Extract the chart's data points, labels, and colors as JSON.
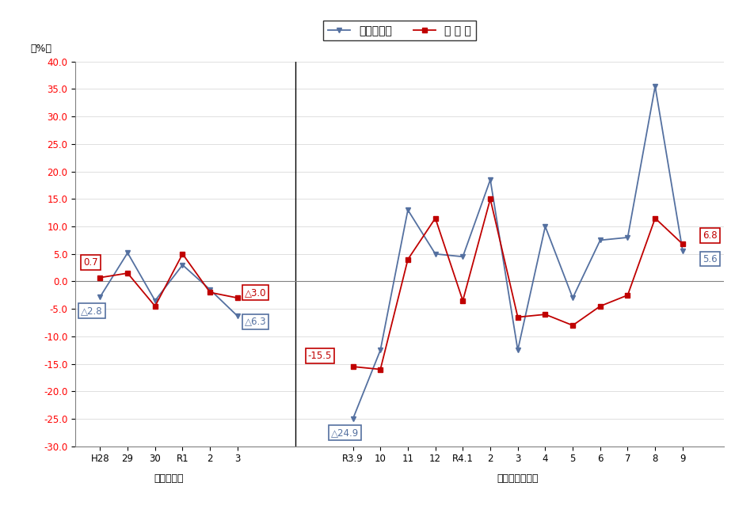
{
  "ylabel": "（%）",
  "legend_label1": "勤労者世帯",
  "legend_label2": "全 世 帯",
  "x_labels_left": [
    "H28",
    "29",
    "30",
    "R1",
    "2",
    "3"
  ],
  "x_labels_right": [
    "R3.9",
    "10",
    "11",
    "12",
    "R4.1",
    "2",
    "3",
    "4",
    "5",
    "6",
    "7",
    "8",
    "9"
  ],
  "blue_left": [
    -2.8,
    5.2,
    -3.5,
    3.0,
    -1.5,
    -6.3
  ],
  "red_left": [
    0.7,
    1.5,
    -4.5,
    5.0,
    -2.0,
    -3.0
  ],
  "blue_right": [
    -25.0,
    -12.5,
    13.0,
    5.0,
    4.5,
    18.5,
    -12.5,
    10.0,
    -3.0,
    7.5,
    8.0,
    35.5,
    5.6
  ],
  "red_right": [
    -15.5,
    -16.0,
    4.0,
    11.5,
    -3.5,
    15.0,
    -6.5,
    -6.0,
    -8.0,
    -4.5,
    -2.5,
    11.5,
    6.8
  ],
  "ylim": [
    -30.0,
    40.0
  ],
  "yticks": [
    -30.0,
    -25.0,
    -20.0,
    -15.0,
    -10.0,
    -5.0,
    0.0,
    5.0,
    10.0,
    15.0,
    20.0,
    25.0,
    30.0,
    35.0,
    40.0
  ],
  "blue_color": "#5470A0",
  "red_color": "#C00000",
  "ytick_color": "#FF0000",
  "background_color": "#FFFFFF",
  "label_section_left": "（前年比）",
  "label_section_right": "（前年同月比）"
}
